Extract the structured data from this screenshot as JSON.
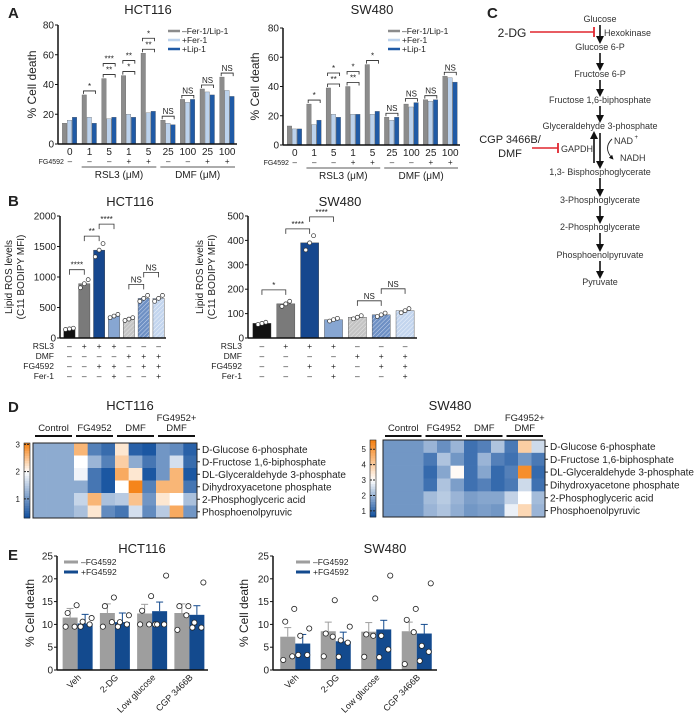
{
  "panel_labels": [
    "A",
    "B",
    "C",
    "D",
    "E"
  ],
  "chart_data": [
    {
      "panel": "A",
      "type": "bar",
      "title": "HCT116",
      "ylabel": "% Cell death",
      "ylim": [
        0,
        80
      ],
      "yticks": [
        "0",
        "20",
        "40",
        "60",
        "80"
      ],
      "categories": [
        "0",
        "1",
        "5",
        "1",
        "5",
        "25",
        "100",
        "25",
        "100"
      ],
      "row_label": "FG4592",
      "fg4592": [
        "–",
        "–",
        "–",
        "+",
        "+",
        "–",
        "–",
        "+",
        "+"
      ],
      "group_labels": [
        "RSL3 (μM)",
        "DMF (μM)"
      ],
      "legend": "top-right",
      "series": [
        {
          "name": "–Fer-1/Lip-1",
          "color": "#8c8c8c",
          "values": [
            14,
            33,
            44,
            46,
            61,
            16,
            30,
            37,
            45
          ]
        },
        {
          "name": "+Fer-1",
          "color": "#bcd2ec",
          "values": [
            16,
            18,
            17,
            20,
            21,
            14,
            28,
            35,
            36
          ]
        },
        {
          "name": "+Lip-1",
          "color": "#1f5aa6",
          "values": [
            18,
            14,
            18,
            18,
            22,
            13,
            30,
            33,
            32
          ]
        }
      ],
      "significance": [
        [],
        [
          "*"
        ],
        [
          "***",
          "**"
        ],
        [
          "**",
          "*"
        ],
        [
          "*",
          "**"
        ],
        [
          "NS"
        ],
        [
          "NS"
        ],
        [
          "NS"
        ],
        [
          "NS"
        ]
      ]
    },
    {
      "panel": "A",
      "type": "bar",
      "title": "SW480",
      "ylabel": "% Cell death",
      "ylim": [
        0,
        80
      ],
      "yticks": [
        "0",
        "20",
        "40",
        "60",
        "80"
      ],
      "categories": [
        "0",
        "1",
        "5",
        "1",
        "5",
        "25",
        "100",
        "25",
        "100"
      ],
      "row_label": "FG4592",
      "fg4592": [
        "–",
        "–",
        "–",
        "+",
        "+",
        "–",
        "–",
        "+",
        "+"
      ],
      "group_labels": [
        "RSL3 (μM)",
        "DMF (μM)"
      ],
      "legend": "top-right",
      "series": [
        {
          "name": "–Fer-1/Lip-1",
          "color": "#8c8c8c",
          "values": [
            13,
            28,
            39,
            40,
            55,
            19,
            28,
            31,
            47
          ]
        },
        {
          "name": "+Fer-1",
          "color": "#bcd2ec",
          "values": [
            11,
            14,
            21,
            21,
            21,
            17,
            26,
            30,
            46
          ]
        },
        {
          "name": "+Lip-1",
          "color": "#1f5aa6",
          "values": [
            11,
            17,
            19,
            21,
            23,
            19,
            29,
            31,
            43
          ]
        }
      ],
      "significance": [
        [],
        [
          "*"
        ],
        [
          "*",
          "**"
        ],
        [
          "*",
          "**"
        ],
        [
          "*"
        ],
        [
          "NS"
        ],
        [
          "NS"
        ],
        [
          "NS"
        ],
        [
          "NS"
        ]
      ]
    },
    {
      "panel": "B",
      "type": "bar",
      "title": "HCT116",
      "ylabel": [
        "Lipid ROS levels",
        "(C11 BODIPY MFI)"
      ],
      "ylim": [
        0,
        2000
      ],
      "yticks": [
        "0",
        "500",
        "1000",
        "1500",
        "2000"
      ],
      "values": [
        150,
        890,
        1440,
        360,
        310,
        650,
        650
      ],
      "colors": [
        "#111111",
        "#7a7a7a",
        "#16478e",
        "#87a6d2",
        "#c4c4c4",
        "#6e90c4",
        "#c3d5ee"
      ],
      "hatched": [
        false,
        false,
        false,
        false,
        true,
        true,
        true
      ],
      "conditions": [
        {
          "label": "RSL3",
          "values": [
            "–",
            "+",
            "+",
            "+",
            "–",
            "–",
            "–"
          ]
        },
        {
          "label": "DMF",
          "values": [
            "–",
            "–",
            "–",
            "–",
            "+",
            "+",
            "+"
          ]
        },
        {
          "label": "FG4592",
          "values": [
            "–",
            "–",
            "+",
            "+",
            "–",
            "+",
            "+"
          ]
        },
        {
          "label": "Fer-1",
          "values": [
            "–",
            "–",
            "–",
            "+",
            "–",
            "–",
            "+"
          ]
        }
      ],
      "significance": [
        {
          "label": "****",
          "from": 0,
          "to": 1
        },
        {
          "label": "**",
          "from": 1,
          "to": 2
        },
        {
          "label": "****",
          "from": 2,
          "to": 3
        },
        {
          "label": "NS",
          "from": 4,
          "to": 5
        },
        {
          "label": "NS",
          "from": 5,
          "to": 6
        }
      ]
    },
    {
      "panel": "B",
      "type": "bar",
      "title": "SW480",
      "ylabel": [
        "Lipid ROS levels",
        "(C11 BODIPY MFI)"
      ],
      "ylim": [
        0,
        500
      ],
      "yticks": [
        "0",
        "100",
        "200",
        "300",
        "400",
        "500"
      ],
      "values": [
        60,
        140,
        390,
        75,
        85,
        95,
        112
      ],
      "colors": [
        "#111111",
        "#7a7a7a",
        "#16478e",
        "#87a6d2",
        "#c4c4c4",
        "#6e90c4",
        "#c3d5ee"
      ],
      "hatched": [
        false,
        false,
        false,
        false,
        true,
        true,
        true
      ],
      "conditions": [
        {
          "label": "RSL3",
          "values": [
            "–",
            "+",
            "+",
            "+",
            "–",
            "–",
            "–"
          ]
        },
        {
          "label": "DMF",
          "values": [
            "–",
            "–",
            "–",
            "–",
            "+",
            "+",
            "+"
          ]
        },
        {
          "label": "FG4592",
          "values": [
            "–",
            "–",
            "+",
            "+",
            "–",
            "+",
            "+"
          ]
        },
        {
          "label": "Fer-1",
          "values": [
            "–",
            "–",
            "–",
            "+",
            "–",
            "–",
            "+"
          ]
        }
      ],
      "significance": [
        {
          "label": "*",
          "from": 0,
          "to": 1
        },
        {
          "label": "****",
          "from": 1,
          "to": 2
        },
        {
          "label": "****",
          "from": 2,
          "to": 3
        },
        {
          "label": "NS",
          "from": 4,
          "to": 5
        },
        {
          "label": "NS",
          "from": 5,
          "to": 6
        }
      ]
    },
    {
      "panel": "D",
      "type": "heatmap",
      "title": "HCT116",
      "column_groups": [
        [
          "Control"
        ],
        [
          "FG4952"
        ],
        [
          "DMF"
        ],
        [
          "FG4952+",
          "DMF"
        ]
      ],
      "rows": [
        "D-Glucose 6-phosphate",
        "D-Fructose 1,6-biphosphate",
        "DL-Glyceraldehyde 3-phosphate",
        "Dihydroxyacetone phosphate",
        "2-Phosphoglyceric acid",
        "Phosphoenolpyruvic"
      ],
      "colorbar_ticks": [
        "1",
        "2",
        "3"
      ],
      "color_scale": {
        "min": 0.3,
        "mid": 2,
        "max": 3.05,
        "low": "#0d4c9c",
        "midcolor": "#ffffff",
        "high": "#f57f10"
      },
      "matrix": [
        [
          1.2,
          1.2,
          1.2,
          2.6,
          0.8,
          0.6,
          2.2,
          0.5,
          0.4,
          1.0,
          0.9,
          0.5
        ],
        [
          1.2,
          1.2,
          1.2,
          2.0,
          1.3,
          0.8,
          2.4,
          1.2,
          0.7,
          1.0,
          1.7,
          0.6
        ],
        [
          1.2,
          1.2,
          1.2,
          1.9,
          0.7,
          0.4,
          2.7,
          2.2,
          0.4,
          1.0,
          2.6,
          0.4
        ],
        [
          1.2,
          1.2,
          1.2,
          1.2,
          0.7,
          0.4,
          2.0,
          3.0,
          0.8,
          2.6,
          2.6,
          0.7
        ],
        [
          1.2,
          1.2,
          1.2,
          1.6,
          2.6,
          1.4,
          1.5,
          2.5,
          1.0,
          2.2,
          2.0,
          1.4
        ],
        [
          1.2,
          1.2,
          1.2,
          1.4,
          2.2,
          0.9,
          0.7,
          1.7,
          0.9,
          1.5,
          2.7,
          1.0
        ]
      ]
    },
    {
      "panel": "D",
      "type": "heatmap",
      "title": "SW480",
      "column_groups": [
        [
          "Control"
        ],
        [
          "FG4952"
        ],
        [
          "DMF"
        ],
        [
          "FG4952+",
          "DMF"
        ]
      ],
      "rows": [
        "D-Glucose 6-phosphate",
        "D-Fructose 1,6-biphosphate",
        "DL-Glyceraldehyde 3-phosphate",
        "Dihydroxyacetone phosphate",
        "2-Phosphoglyceric acid",
        "Phosphoenolpyruvic"
      ],
      "colorbar_ticks": [
        "1",
        "2",
        "3",
        "4",
        "5"
      ],
      "color_scale": {
        "min": 0.6,
        "mid": 3,
        "max": 5.6,
        "low": "#0d4c9c",
        "midcolor": "#ffffff",
        "high": "#f57f10"
      },
      "matrix": [
        [
          1.6,
          1.6,
          1.6,
          2.0,
          1.5,
          2.0,
          1.1,
          1.3,
          2.2,
          1.2,
          4.0,
          2.5
        ],
        [
          1.6,
          1.6,
          1.6,
          1.2,
          2.2,
          1.6,
          1.1,
          2.0,
          1.3,
          1.1,
          1.6,
          1.2
        ],
        [
          1.6,
          1.6,
          1.6,
          1.0,
          1.8,
          3.1,
          1.1,
          1.8,
          1.0,
          1.3,
          5.3,
          1.0
        ],
        [
          1.6,
          1.6,
          1.6,
          1.1,
          2.2,
          1.7,
          1.1,
          1.3,
          1.0,
          1.2,
          2.5,
          1.1
        ],
        [
          1.6,
          1.6,
          1.6,
          2.1,
          2.3,
          2.0,
          1.7,
          1.8,
          1.8,
          2.4,
          3.0,
          2.1
        ],
        [
          1.6,
          1.6,
          1.6,
          2.0,
          2.2,
          1.9,
          1.6,
          1.7,
          1.6,
          2.8,
          3.8,
          2.0
        ]
      ]
    },
    {
      "panel": "E",
      "type": "bar",
      "title": "HCT116",
      "ylabel": "% Cell death",
      "ylim": [
        0,
        25
      ],
      "yticks": [
        "0",
        "5",
        "10",
        "15",
        "20",
        "25"
      ],
      "categories": [
        "Veh",
        "2-DG",
        "Low glucose",
        "CGP 3466B"
      ],
      "legend": "top-left",
      "series": [
        {
          "name": "–FG4592",
          "color": "#9e9e9e",
          "values": [
            11.5,
            12.5,
            12.4,
            12.5
          ],
          "points": [
            [
              9.5,
              9.5,
              12.5,
              14.2
            ],
            [
              9.5,
              10.5,
              14,
              15.9
            ],
            [
              10,
              10,
              13,
              16.2
            ],
            [
              8.8,
              12,
              14,
              14
            ]
          ]
        },
        {
          "name": "+FG4592",
          "color": "#134a8e",
          "values": [
            10.2,
            10.5,
            12.9,
            12.1
          ],
          "points": [
            [
              9.5,
              10,
              10.6,
              11.4
            ],
            [
              9.5,
              10,
              10.5,
              12
            ],
            [
              10,
              10,
              10,
              20.7
            ],
            [
              9.3,
              9.3,
              10.4,
              19.2
            ]
          ]
        }
      ]
    },
    {
      "panel": "E",
      "type": "bar",
      "title": "SW480",
      "ylabel": "% Cell death",
      "ylim": [
        0,
        25
      ],
      "yticks": [
        "0",
        "5",
        "10",
        "15",
        "20",
        "25"
      ],
      "categories": [
        "Veh",
        "2-DG",
        "Low glucose",
        "CGP 3466B"
      ],
      "legend": "top-left",
      "series": [
        {
          "name": "–FG4592",
          "color": "#9e9e9e",
          "values": [
            7.3,
            8.5,
            8.4,
            8.5
          ],
          "points": [
            [
              2.2,
              3,
              10.6,
              13.4
            ],
            [
              3,
              7.3,
              8,
              15.3
            ],
            [
              2.9,
              7.5,
              7.8,
              15.7
            ],
            [
              1.3,
              8.3,
              11,
              13.4
            ]
          ]
        },
        {
          "name": "+FG4592",
          "color": "#134a8e",
          "values": [
            5.8,
            6.3,
            8.9,
            8.0
          ],
          "points": [
            [
              3.3,
              3.3,
              7.5,
              9.1
            ],
            [
              2.9,
              6,
              6.5,
              9.5
            ],
            [
              2.8,
              4.5,
              7.5,
              20.7
            ],
            [
              2,
              4,
              5.3,
              19
            ]
          ]
        }
      ]
    }
  ],
  "pathway": {
    "steps": [
      "Glucose",
      "Glucose 6-P",
      "Fructose 6-P",
      "Fructose 1,6-biphosphate",
      "Glyceraldehyde 3-phosphate",
      "1,3- Bisphosphoglycerate",
      "3-Phosphoglycerate",
      "2-Phosphoglycerate",
      "Phosphoenolpyruvate",
      "Pyruvate"
    ],
    "enzymes": {
      "hexokinase": "Hexokinase",
      "gapdh": "GAPDH"
    },
    "inhibitors": {
      "hexokinase": "2-DG",
      "gapdh_line1": "CGP 3466B/",
      "gapdh_line2": "DMF"
    },
    "cofactors": {
      "nad": "NAD",
      "nad_sup": "+",
      "nadh": "NADH"
    },
    "inhibitor_color": "#e0262f"
  }
}
